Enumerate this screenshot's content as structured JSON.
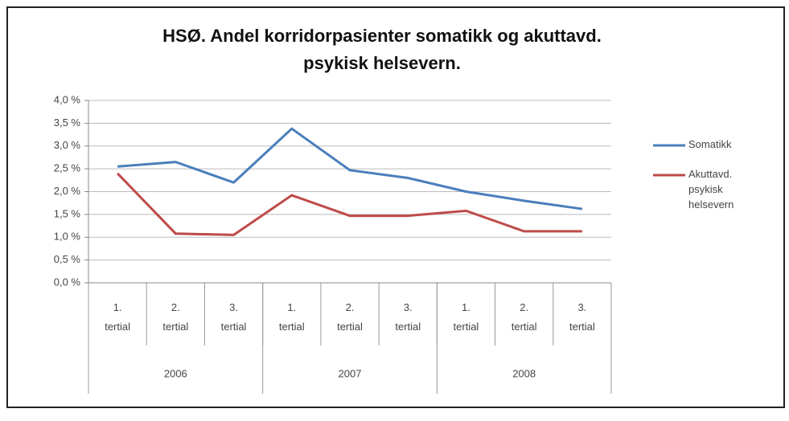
{
  "chart_data": {
    "type": "line",
    "title": "HSØ. Andel korridorpasienter somatikk og akuttavd. psykisk helsevern.",
    "categories": [
      "1. tertial",
      "2. tertial",
      "3. tertial",
      "1. tertial",
      "2. tertial",
      "3. tertial",
      "1. tertial",
      "2. tertial",
      "3. tertial"
    ],
    "category_groups": [
      {
        "label": "2006",
        "count": 3
      },
      {
        "label": "2007",
        "count": 3
      },
      {
        "label": "2008",
        "count": 3
      }
    ],
    "series": [
      {
        "name": "Somatikk",
        "color": "#4a7ebb",
        "values": [
          2.55,
          2.65,
          2.2,
          3.38,
          2.47,
          2.3,
          2.0,
          1.8,
          1.62
        ]
      },
      {
        "name": "Akuttavd. psykisk helsevern",
        "color": "#be4b48",
        "values": [
          2.4,
          1.08,
          1.05,
          1.92,
          1.47,
          1.47,
          1.58,
          1.13,
          1.13
        ]
      }
    ],
    "ylim": [
      0,
      4
    ],
    "yticks": [
      {
        "value": 0,
        "label": "0,0 %"
      },
      {
        "value": 0.5,
        "label": "0,5 %"
      },
      {
        "value": 1,
        "label": "1,0 %"
      },
      {
        "value": 1.5,
        "label": "1,5 %"
      },
      {
        "value": 2,
        "label": "2,0 %"
      },
      {
        "value": 2.5,
        "label": "2,5 %"
      },
      {
        "value": 3,
        "label": "3,0 %"
      },
      {
        "value": 3.5,
        "label": "3,5 %"
      },
      {
        "value": 4,
        "label": "4,0 %"
      }
    ],
    "grid": true,
    "legend": "right"
  }
}
